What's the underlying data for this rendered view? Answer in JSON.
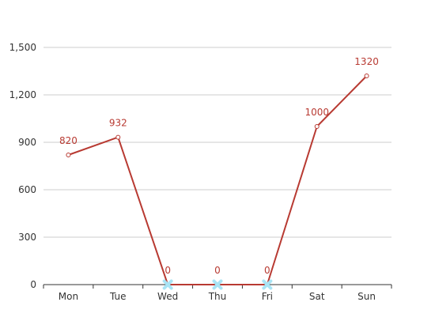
{
  "chart_data": {
    "type": "line",
    "categories": [
      "Mon",
      "Tue",
      "Wed",
      "Thu",
      "Fri",
      "Sat",
      "Sun"
    ],
    "values": [
      820,
      932,
      0,
      0,
      0,
      1000,
      1320
    ],
    "data_labels": [
      "820",
      "932",
      "0",
      "0",
      "0",
      "1000",
      "1320"
    ],
    "yticks": [
      0,
      300,
      600,
      900,
      1200,
      1500
    ],
    "ytick_labels": [
      "0",
      "300",
      "600",
      "900",
      "1,200",
      "1,500"
    ],
    "ylim": [
      0,
      1500
    ],
    "grid": true,
    "highlighted_indices": [
      2,
      3,
      4
    ],
    "colors": {
      "line": "#b83a32",
      "label": "#b83a32",
      "highlight": "#a9e4f5",
      "grid": "#cccccc",
      "axis": "#333333",
      "tick_text": "#333333"
    }
  }
}
